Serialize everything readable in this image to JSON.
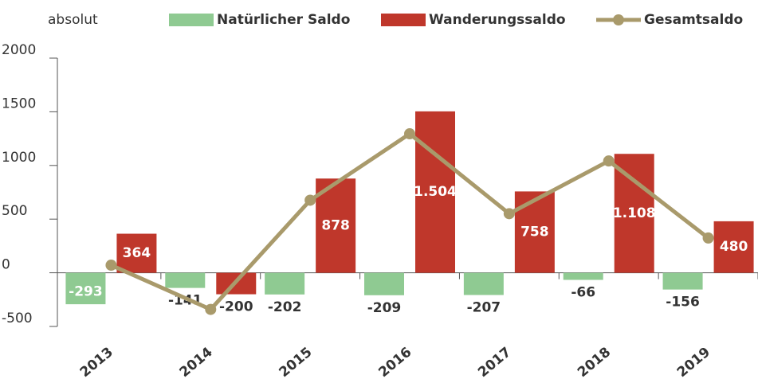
{
  "chart_data": {
    "type": "bar_line",
    "y_label": "absolut",
    "categories": [
      "2013",
      "2014",
      "2015",
      "2016",
      "2017",
      "2018",
      "2019"
    ],
    "series": [
      {
        "name": "Natürlicher Saldo",
        "type": "bar",
        "color": "#8fca92",
        "values": [
          -293,
          -141,
          -202,
          -209,
          -207,
          -66,
          -156
        ]
      },
      {
        "name": "Wanderungssaldo",
        "type": "bar",
        "color": "#bf372b",
        "values": [
          364,
          -200,
          878,
          1504,
          758,
          1108,
          480
        ],
        "value_labels": [
          "364",
          "-200",
          "878",
          "1.504",
          "758",
          "1.108",
          "480"
        ]
      },
      {
        "name": "Gesamtsaldo",
        "type": "line",
        "color": "#a99a6b",
        "values": [
          71,
          -341,
          676,
          1295,
          551,
          1042,
          324
        ]
      }
    ],
    "ylim": [
      -500,
      2000
    ],
    "yticks": [
      -500,
      0,
      500,
      1000,
      1500,
      2000
    ]
  }
}
